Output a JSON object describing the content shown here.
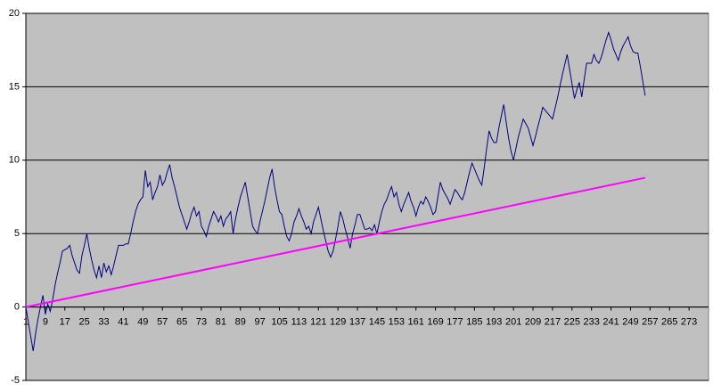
{
  "chart_data": {
    "type": "line",
    "xlim": [
      1,
      281
    ],
    "xticks": [
      1,
      9,
      17,
      25,
      33,
      41,
      49,
      57,
      65,
      73,
      81,
      89,
      97,
      105,
      113,
      121,
      129,
      137,
      145,
      153,
      161,
      169,
      177,
      185,
      193,
      201,
      209,
      217,
      225,
      233,
      241,
      249,
      257,
      265,
      273
    ],
    "ylim": [
      -5,
      20
    ],
    "yticks": [
      -5,
      0,
      5,
      10,
      15,
      20
    ],
    "grid": true,
    "series": [
      {
        "color": "#000080",
        "x": [
          1,
          2,
          3,
          4,
          5,
          6,
          7,
          8,
          9,
          10,
          11,
          12,
          13,
          14,
          15,
          16,
          17,
          18,
          19,
          20,
          21,
          22,
          23,
          24,
          25,
          26,
          27,
          28,
          29,
          30,
          31,
          32,
          33,
          34,
          35,
          36,
          37,
          38,
          39,
          40,
          41,
          42,
          43,
          44,
          45,
          46,
          47,
          48,
          49,
          50,
          51,
          52,
          53,
          54,
          55,
          56,
          57,
          58,
          59,
          60,
          61,
          62,
          63,
          64,
          65,
          66,
          67,
          68,
          69,
          70,
          71,
          72,
          73,
          74,
          75,
          76,
          77,
          78,
          79,
          80,
          81,
          82,
          83,
          84,
          85,
          86,
          87,
          88,
          89,
          90,
          91,
          92,
          93,
          94,
          95,
          96,
          97,
          98,
          99,
          100,
          101,
          102,
          103,
          104,
          105,
          106,
          107,
          108,
          109,
          110,
          111,
          112,
          113,
          114,
          115,
          116,
          117,
          118,
          119,
          120,
          121,
          122,
          123,
          124,
          125,
          126,
          127,
          128,
          129,
          130,
          131,
          132,
          133,
          134,
          135,
          136,
          137,
          138,
          139,
          140,
          141,
          142,
          143,
          144,
          145,
          146,
          147,
          148,
          149,
          150,
          151,
          152,
          153,
          154,
          155,
          156,
          157,
          158,
          159,
          160,
          161,
          162,
          163,
          164,
          165,
          166,
          167,
          168,
          169,
          170,
          171,
          172,
          173,
          174,
          175,
          176,
          177,
          178,
          179,
          180,
          181,
          182,
          183,
          184,
          185,
          186,
          187,
          188,
          189,
          190,
          191,
          192,
          193,
          194,
          195,
          196,
          197,
          198,
          199,
          200,
          201,
          202,
          203,
          204,
          205,
          206,
          207,
          208,
          209,
          210,
          211,
          212,
          213,
          214,
          215,
          216,
          217,
          218,
          219,
          220,
          221,
          222,
          223,
          224,
          225,
          226,
          227,
          228,
          229,
          230,
          231,
          232,
          233,
          234,
          235,
          236,
          237,
          238,
          239,
          240,
          241,
          242,
          243,
          244,
          245,
          246,
          247,
          248,
          249,
          250,
          251,
          252,
          253,
          254,
          255
        ],
        "values": [
          0,
          -1,
          -2,
          -3,
          -1.8,
          -0.8,
          0,
          0.8,
          -0.5,
          0.2,
          -0.3,
          0.5,
          1.5,
          2.3,
          3,
          3.8,
          3.9,
          4,
          4.2,
          3.5,
          3,
          2.5,
          2.3,
          3.5,
          4.2,
          5,
          4,
          3.2,
          2.5,
          2,
          2.8,
          2,
          3,
          2.4,
          2.8,
          2.2,
          2.8,
          3.5,
          4.2,
          4.2,
          4.2,
          4.3,
          4.3,
          5,
          5.8,
          6.5,
          7,
          7.3,
          7.5,
          9.3,
          8.2,
          8.5,
          7.3,
          7.8,
          8.2,
          9,
          8.3,
          8.6,
          9.2,
          9.7,
          8.8,
          8.2,
          7.5,
          6.8,
          6.3,
          5.8,
          5.3,
          5.8,
          6.4,
          6.8,
          6.2,
          6.5,
          5.5,
          5.2,
          4.8,
          5.5,
          6,
          6.5,
          6.2,
          5.8,
          6.2,
          5.5,
          6,
          6.2,
          6.5,
          5,
          6,
          6.8,
          7.5,
          8,
          8.5,
          7.5,
          6.5,
          5.5,
          5.2,
          5,
          5.8,
          6.5,
          7.2,
          8,
          8.8,
          9.4,
          8.2,
          7.3,
          6.5,
          6.3,
          5.5,
          4.8,
          4.5,
          5,
          5.8,
          6.2,
          6.7,
          6.2,
          5.8,
          5.3,
          5.5,
          5,
          5.8,
          6.3,
          6.8,
          6,
          5.2,
          4.5,
          3.8,
          3.4,
          3.8,
          4.6,
          5.5,
          6.5,
          6,
          5.3,
          4.7,
          4,
          5,
          5.6,
          6.3,
          6.3,
          5.8,
          5.3,
          5.3,
          5.4,
          5.2,
          5.6,
          5,
          5.8,
          6.5,
          7,
          7.3,
          7.8,
          8.2,
          7.5,
          7.8,
          7,
          6.5,
          7,
          7.4,
          7.8,
          7.2,
          6.8,
          6.2,
          6.8,
          7.2,
          7,
          7.5,
          7.2,
          6.8,
          6.3,
          6.5,
          7.5,
          8.5,
          8,
          7.7,
          7.4,
          7,
          7.5,
          8,
          7.8,
          7.5,
          7.3,
          7.8,
          8.5,
          9.2,
          9.8,
          9.4,
          9,
          8.6,
          8.3,
          9.5,
          10.8,
          12,
          11.5,
          11.2,
          11.2,
          12.2,
          13,
          13.8,
          12.6,
          11.5,
          10.6,
          10,
          10.8,
          11.6,
          12.2,
          12.8,
          12.5,
          12.2,
          11.6,
          11,
          11.6,
          12.3,
          12.9,
          13.6,
          13.4,
          13.2,
          13,
          12.8,
          13.5,
          14.2,
          15,
          15.8,
          16.5,
          17.2,
          16.2,
          15.2,
          14.2,
          14.8,
          15.3,
          14.3,
          15.5,
          16.6,
          16.6,
          16.6,
          17.2,
          16.8,
          16.6,
          17,
          17.6,
          18.2,
          18.7,
          18.2,
          17.6,
          17.2,
          16.8,
          17.4,
          17.8,
          18.1,
          18.4,
          17.8,
          17.4,
          17.3,
          17.3,
          16.4,
          15.4,
          14.4
        ]
      },
      {
        "color": "#ff00ff",
        "x": [
          1,
          255
        ],
        "values": [
          0,
          8.8
        ]
      }
    ]
  }
}
